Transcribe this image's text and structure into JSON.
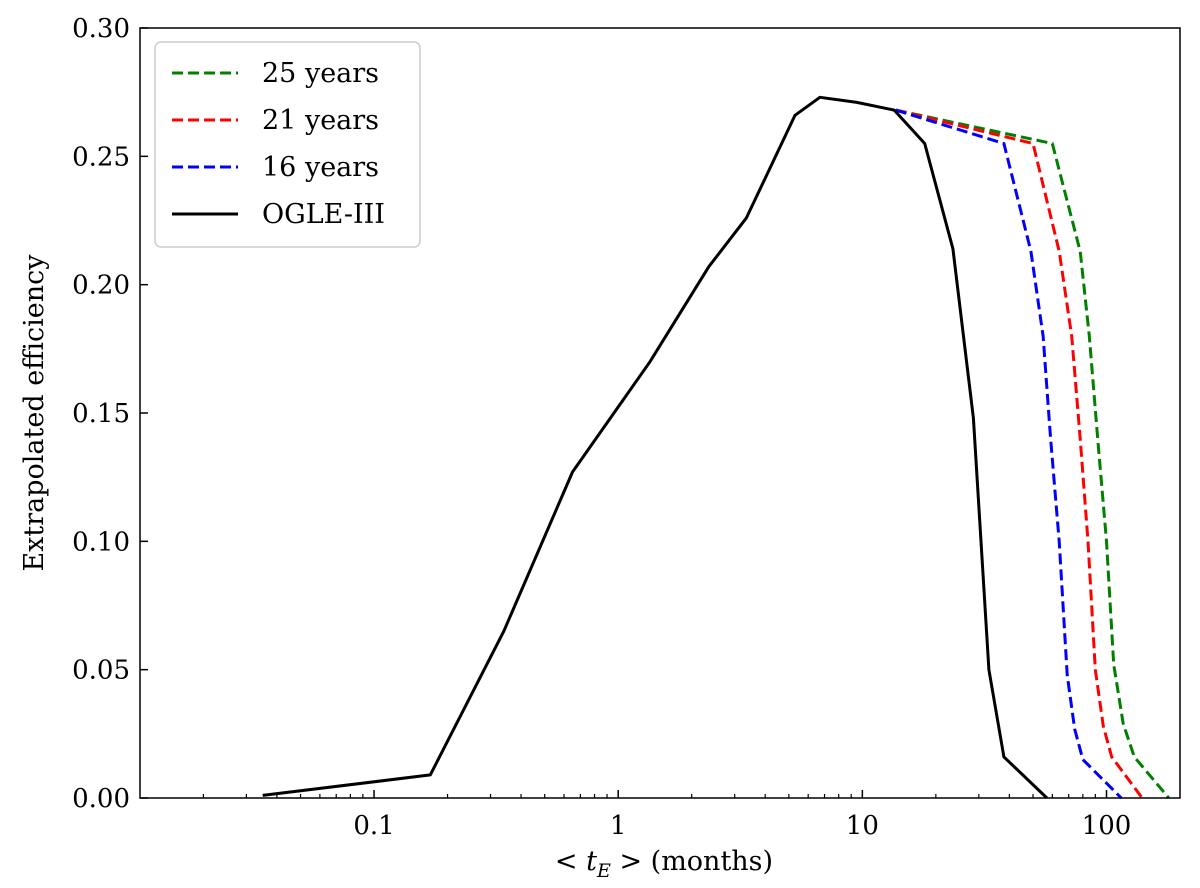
{
  "chart_data": {
    "type": "line",
    "title": "",
    "xlabel": {
      "prefix": "< ",
      "var": "t",
      "sub": "E",
      "suffix": " >  (months)"
    },
    "ylabel": "Extrapolated efficiency",
    "xscale": "log",
    "xlim": [
      0.011,
      200
    ],
    "ylim": [
      0.0,
      0.3
    ],
    "xticks": [
      {
        "value": 0.1,
        "label": "0.1"
      },
      {
        "value": 1,
        "label": "1"
      },
      {
        "value": 10,
        "label": "10"
      },
      {
        "value": 100,
        "label": "100"
      }
    ],
    "yticks": [
      {
        "value": 0.0,
        "label": "0.00"
      },
      {
        "value": 0.05,
        "label": "0.05"
      },
      {
        "value": 0.1,
        "label": "0.10"
      },
      {
        "value": 0.15,
        "label": "0.15"
      },
      {
        "value": 0.2,
        "label": "0.20"
      },
      {
        "value": 0.25,
        "label": "0.25"
      },
      {
        "value": 0.3,
        "label": "0.30"
      }
    ],
    "legend_position": "top-left",
    "series": [
      {
        "name": "25 years",
        "color": "#008000",
        "dash": true,
        "x": [
          13.7,
          60,
          78,
          85,
          92,
          100,
          107,
          117,
          130,
          180
        ],
        "y": [
          0.268,
          0.255,
          0.213,
          0.18,
          0.14,
          0.1,
          0.052,
          0.029,
          0.016,
          0.0
        ]
      },
      {
        "name": "21 years",
        "color": "#ff0000",
        "dash": true,
        "x": [
          13.7,
          50,
          64,
          72,
          78,
          84,
          90,
          97,
          105,
          140
        ],
        "y": [
          0.268,
          0.255,
          0.213,
          0.18,
          0.14,
          0.1,
          0.05,
          0.028,
          0.016,
          0.0
        ]
      },
      {
        "name": "16 years",
        "color": "#0000ff",
        "dash": true,
        "x": [
          13.7,
          38,
          49,
          55,
          59,
          64,
          69,
          74,
          80,
          115
        ],
        "y": [
          0.268,
          0.255,
          0.213,
          0.18,
          0.14,
          0.1,
          0.048,
          0.027,
          0.015,
          0.0
        ]
      },
      {
        "name": "OGLE-III",
        "color": "#000000",
        "dash": false,
        "x": [
          0.035,
          0.17,
          0.34,
          0.65,
          1.35,
          2.35,
          3.35,
          5.3,
          6.7,
          9.5,
          13.5,
          18,
          23.5,
          28.5,
          33,
          38,
          57
        ],
        "y": [
          0.001,
          0.009,
          0.065,
          0.127,
          0.17,
          0.207,
          0.226,
          0.266,
          0.273,
          0.271,
          0.268,
          0.255,
          0.214,
          0.148,
          0.05,
          0.016,
          0.0
        ]
      }
    ]
  }
}
